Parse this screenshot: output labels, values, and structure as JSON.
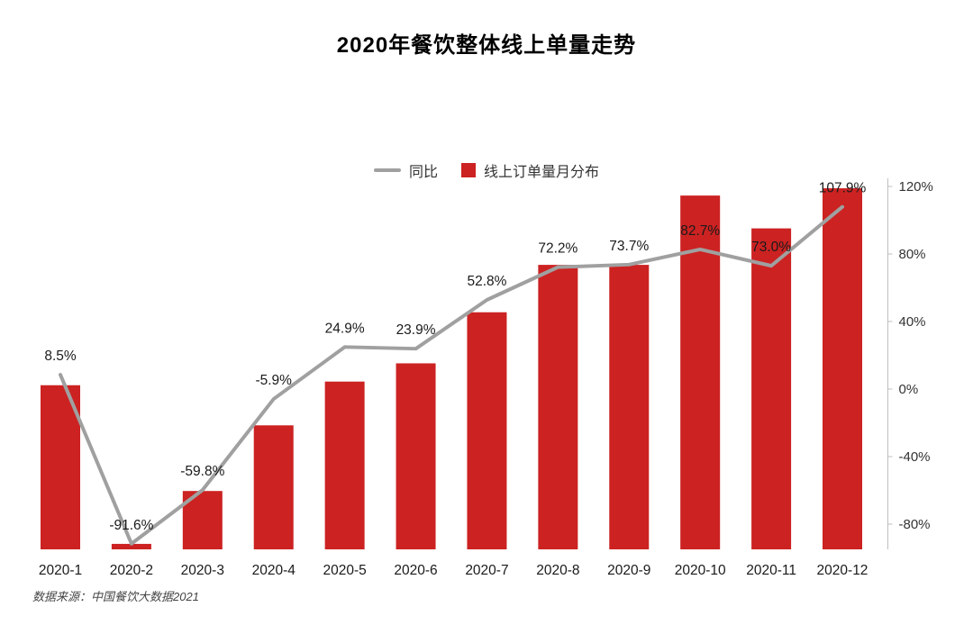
{
  "title": "2020年餐饮整体线上单量走势",
  "source": "数据来源：中国餐饮大数据2021",
  "chart_data": {
    "type": "bar+line combo",
    "title": "2020年餐饮整体线上单量走势",
    "categories": [
      "2020-1",
      "2020-2",
      "2020-3",
      "2020-4",
      "2020-5",
      "2020-6",
      "2020-7",
      "2020-8",
      "2020-9",
      "2020-10",
      "2020-11",
      "2020-12"
    ],
    "series": [
      {
        "name": "同比",
        "type": "line",
        "axis": "right",
        "color": "#a0a0a0",
        "values_percent": [
          8.5,
          -91.6,
          -59.8,
          -5.9,
          24.9,
          23.9,
          52.8,
          72.2,
          73.7,
          82.7,
          73.0,
          107.9
        ]
      },
      {
        "name": "线上订单量月分布",
        "type": "bar",
        "axis": "hidden-left (no scale shown)",
        "color": "#cc2222",
        "unit": "relative_height_0_100_estimated",
        "values_relative": [
          45,
          1.5,
          16,
          34,
          46,
          51,
          65,
          78,
          78,
          97,
          88,
          99
        ]
      }
    ],
    "data_labels": [
      "8.5%",
      "-91.6%",
      "-59.8%",
      "-5.9%",
      "24.9%",
      "23.9%",
      "52.8%",
      "72.2%",
      "73.7%",
      "82.7%",
      "73.0%",
      "107.9%"
    ],
    "right_axis": {
      "ticks": [
        "120%",
        "80%",
        "40%",
        "0%",
        "-40%",
        "-80%"
      ],
      "tick_values": [
        120,
        80,
        40,
        0,
        -40,
        -80
      ],
      "min": -100,
      "max": 120,
      "axis_color": "#bfbfbf"
    },
    "grid": "off",
    "legend_position": "top-center",
    "label_color": "#1a1a1a"
  }
}
